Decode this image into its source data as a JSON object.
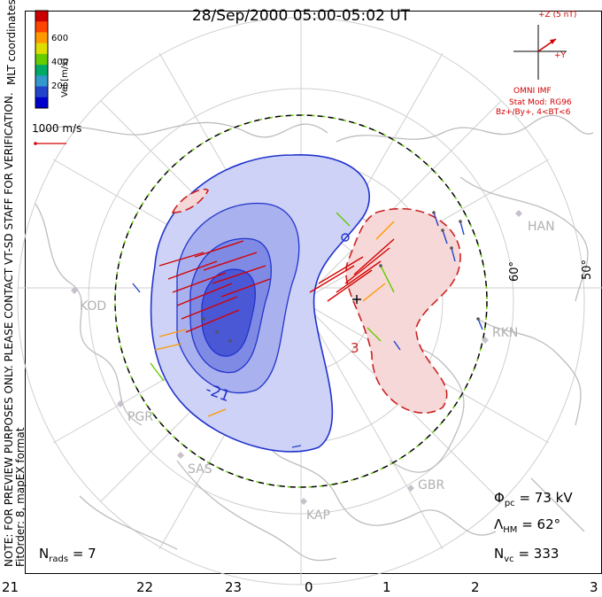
{
  "title": "28/Sep/2000 05:00-05:02 UT",
  "note_line1": "NOTE: FOR PREVIEW PURPOSES ONLY. PLEASE CONTACT VT-SD STAFF FOR VERIFICATION.",
  "note_line2": "FitOrder: 8, mapEX format",
  "coords_label": "MLT coordinates",
  "colorbar": {
    "label": "Vel [m/s]",
    "ticks": [
      "600",
      "400",
      "200"
    ],
    "colors": [
      "#cc0000",
      "#ff4400",
      "#ff9900",
      "#dddd00",
      "#66cc00",
      "#00aa66",
      "#3399cc",
      "#2244cc",
      "#0000cc"
    ]
  },
  "scale_vector_label": "1000 m/s",
  "imf": {
    "z_label": "+Z (5 nT)",
    "y_label": "+Y",
    "source": "OMNI IMF",
    "stat_mod": "Stat Mod: RG96",
    "condition": "Bz+/By+, 4<BT<6"
  },
  "stats": {
    "phi_pc": "= 73 kV",
    "lambda_hm": "= 62°",
    "n_vc": "= 333",
    "n_rads": "= 7"
  },
  "stat_symbols": {
    "phi": "Φ",
    "phi_sub": "pc",
    "lambda": "Λ",
    "lambda_sub": "HM",
    "n": "N",
    "nvc_sub": "vc",
    "nrads_sub": "rads"
  },
  "mlt_labels": [
    "21",
    "22",
    "23",
    "0",
    "1",
    "2",
    "3"
  ],
  "lat_labels": [
    "60°",
    "50°"
  ],
  "stations": [
    "HAN",
    "KOD",
    "RKN",
    "PGR",
    "SAS",
    "KAP",
    "GBR"
  ],
  "contour_labels": [
    "-21",
    "3"
  ],
  "colors": {
    "negative": "#2233cc",
    "positive": "#cc2222",
    "fill_neg": "#c8cdf5",
    "fill_pos": "#f5d5d5",
    "land": "#bdbdbd"
  }
}
